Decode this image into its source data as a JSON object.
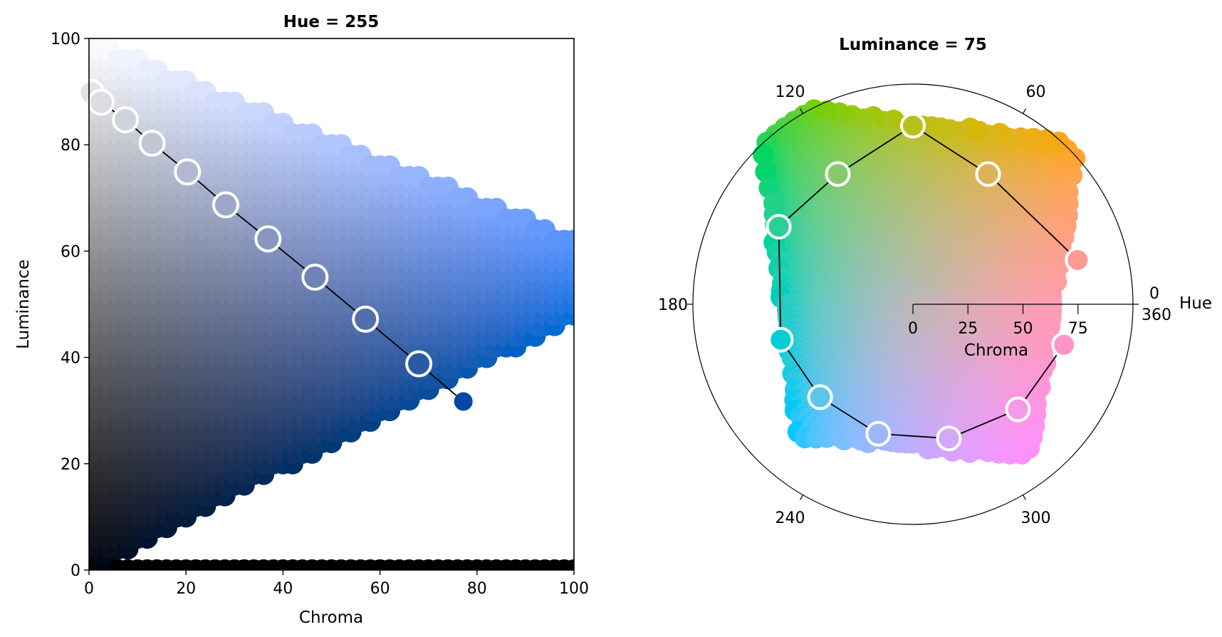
{
  "chart_data": [
    {
      "type": "scatter",
      "title": "Hue = 255",
      "xlabel": "Chroma",
      "ylabel": "Luminance",
      "xlim": [
        0,
        100
      ],
      "ylim": [
        0,
        100
      ],
      "xticks": [
        "0",
        "20",
        "40",
        "60",
        "80",
        "100"
      ],
      "yticks": [
        "0",
        "20",
        "40",
        "60",
        "80",
        "100"
      ],
      "grid": false,
      "legend": "none",
      "background_gamut_hue": 255,
      "line_color": "#000000",
      "marker_edge_color": "#ffffff",
      "points": [
        {
          "chroma": 0.5,
          "luminance": 89.8
        },
        {
          "chroma": 2.5,
          "luminance": 88.0
        },
        {
          "chroma": 7.5,
          "luminance": 84.7
        },
        {
          "chroma": 13.0,
          "luminance": 80.3
        },
        {
          "chroma": 20.3,
          "luminance": 74.9
        },
        {
          "chroma": 28.2,
          "luminance": 68.7
        },
        {
          "chroma": 36.9,
          "luminance": 62.3
        },
        {
          "chroma": 46.6,
          "luminance": 55.1
        },
        {
          "chroma": 57.0,
          "luminance": 47.2
        },
        {
          "chroma": 68.0,
          "luminance": 38.8
        },
        {
          "chroma": 77.2,
          "luminance": 31.7
        }
      ]
    },
    {
      "type": "scatter",
      "projection": "polar",
      "title": "Luminance = 75",
      "theta_label": "Hue",
      "r_label": "Chroma",
      "theta_ticks": [
        "0",
        "60",
        "120",
        "180",
        "240",
        "300"
      ],
      "theta_end_label": "360",
      "r_ticks": [
        "0",
        "25",
        "50",
        "75"
      ],
      "rlim": [
        0,
        100
      ],
      "background_gamut_luminance": 75,
      "line_color": "#000000",
      "marker_edge_color": "#ffffff",
      "points": [
        {
          "hue": 15,
          "chroma": 77.5
        },
        {
          "hue": 60,
          "chroma": 68.3
        },
        {
          "hue": 90,
          "chroma": 81.1
        },
        {
          "hue": 120,
          "chroma": 68.3
        },
        {
          "hue": 150,
          "chroma": 70.4
        },
        {
          "hue": 195,
          "chroma": 62.2
        },
        {
          "hue": 225,
          "chroma": 59.7
        },
        {
          "hue": 255,
          "chroma": 60.9
        },
        {
          "hue": 285,
          "chroma": 63.1
        },
        {
          "hue": 315,
          "chroma": 67.5
        },
        {
          "hue": 345,
          "chroma": 71.1
        }
      ]
    }
  ]
}
